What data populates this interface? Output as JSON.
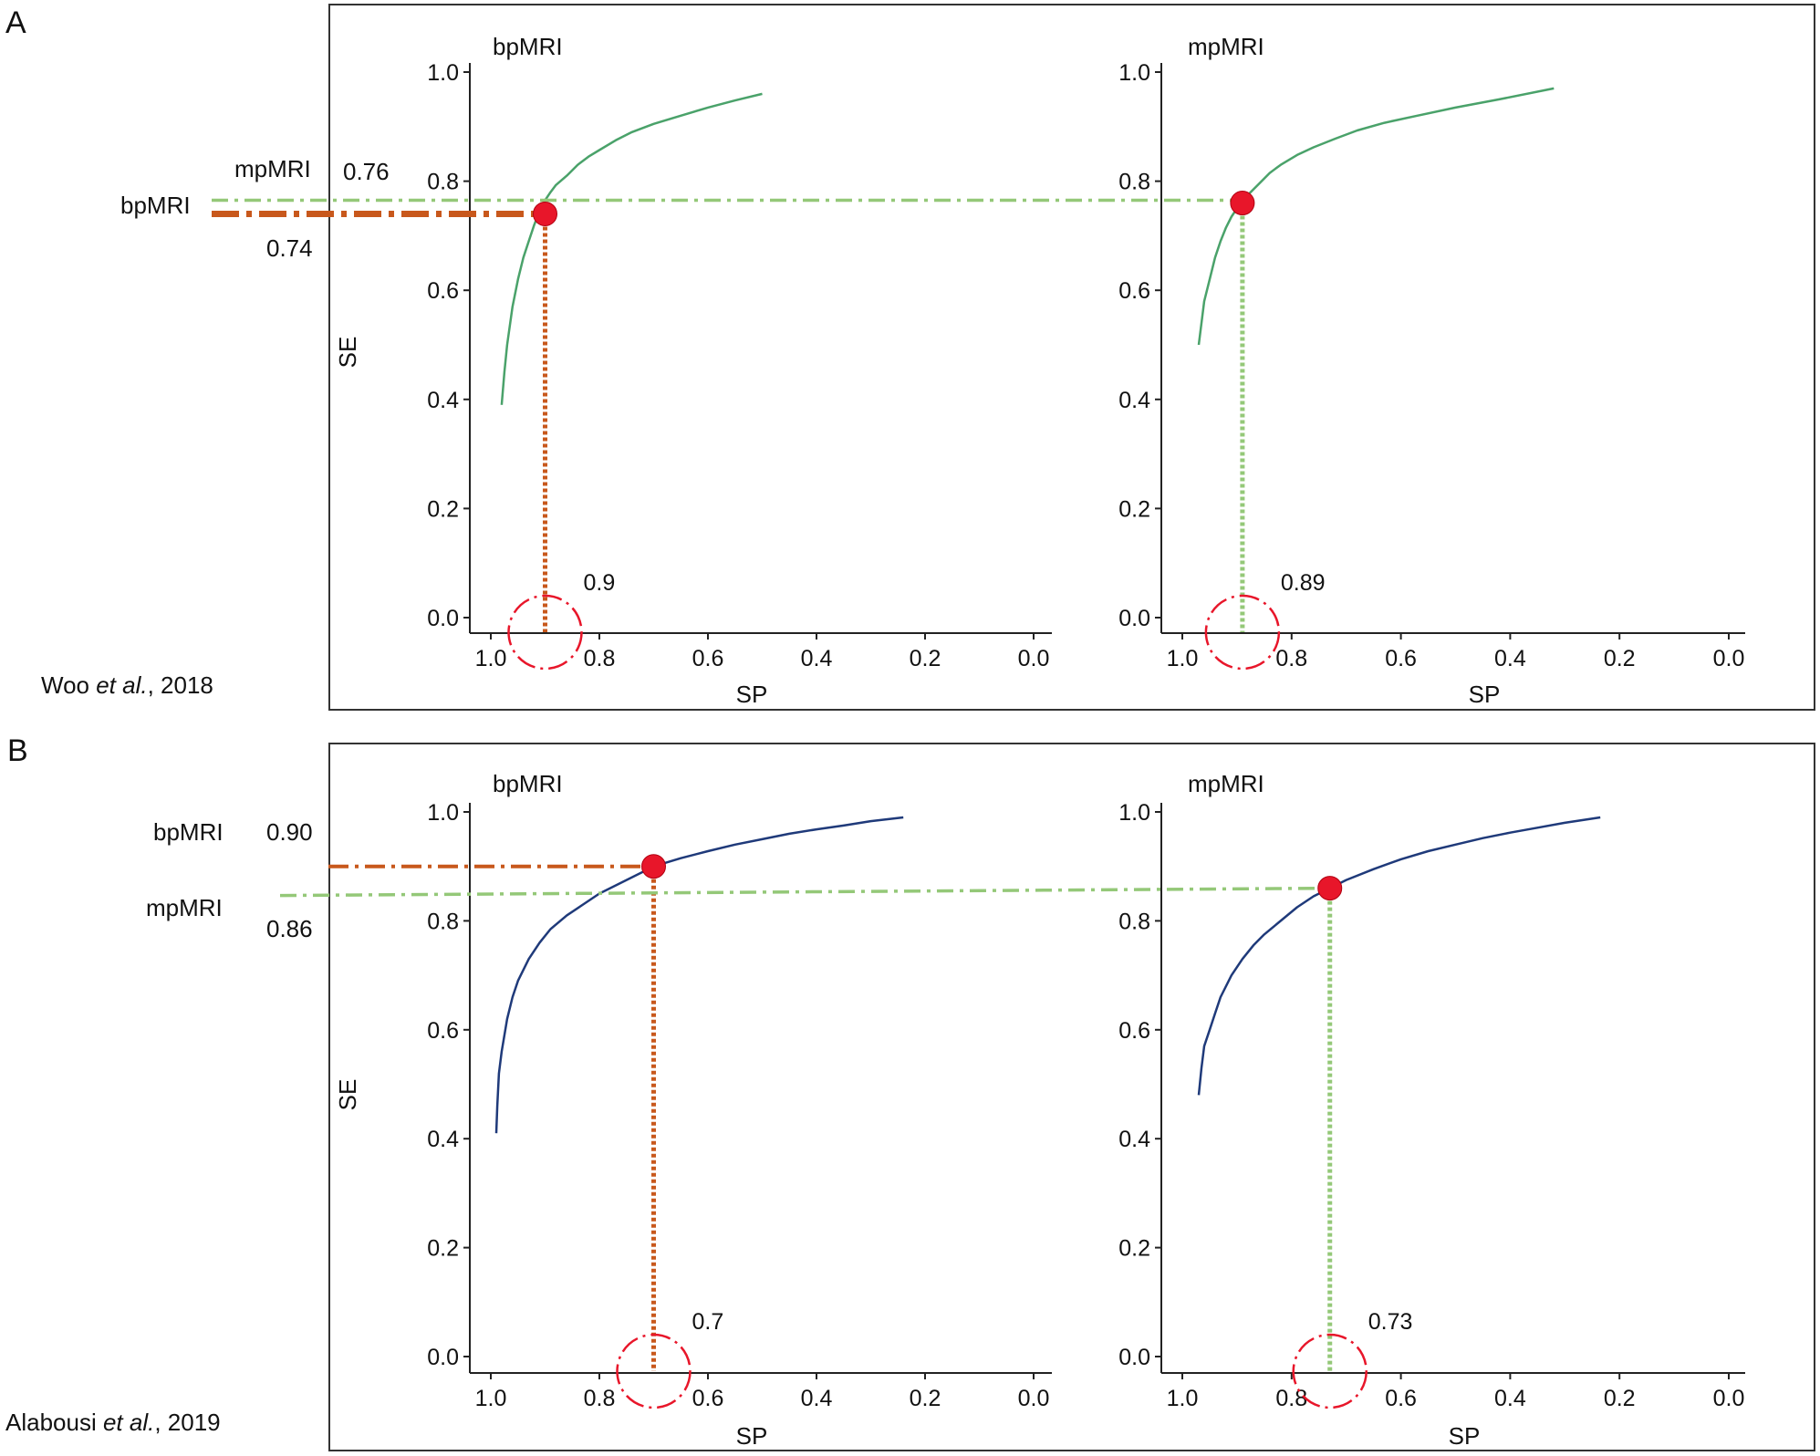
{
  "colors": {
    "bp": "#c8581c",
    "mp": "#94c878",
    "curve_a": "#4aa26a",
    "curve_b": "#1f3a7a",
    "point": "#e8162a",
    "circle": "#e8162a"
  },
  "chart_data": [
    {
      "panel": "A",
      "citation": {
        "author": "Woo ",
        "etal": "et al.",
        "year": ", 2018"
      },
      "side_labels": {
        "bp_label": "bpMRI",
        "bp_value": "0.74",
        "mp_label": "mpMRI",
        "mp_value": "0.76"
      },
      "ylabel": "SE",
      "plots": [
        {
          "type": "line",
          "title": "bpMRI",
          "xlabel": "SP",
          "xlim": [
            1.0,
            0.0
          ],
          "ylim": [
            0.0,
            1.0
          ],
          "xticks": [
            "1.0",
            "0.8",
            "0.6",
            "0.4",
            "0.2",
            "0.0"
          ],
          "yticks": [
            "0.0",
            "0.2",
            "0.4",
            "0.6",
            "0.8",
            "1.0"
          ],
          "curve_color": "curve_a",
          "guide_color": "bp",
          "curve": {
            "sp": [
              0.98,
              0.975,
              0.97,
              0.96,
              0.95,
              0.94,
              0.93,
              0.92,
              0.91,
              0.9,
              0.89,
              0.88,
              0.86,
              0.84,
              0.82,
              0.8,
              0.77,
              0.74,
              0.7,
              0.65,
              0.6,
              0.55,
              0.5
            ],
            "se": [
              0.39,
              0.45,
              0.5,
              0.57,
              0.62,
              0.66,
              0.69,
              0.72,
              0.745,
              0.765,
              0.78,
              0.793,
              0.81,
              0.83,
              0.845,
              0.857,
              0.875,
              0.89,
              0.905,
              0.92,
              0.935,
              0.948,
              0.96
            ]
          },
          "point": {
            "sp": 0.9,
            "se": 0.74
          },
          "sp_annotation": "0.9"
        },
        {
          "type": "line",
          "title": "mpMRI",
          "xlabel": "SP",
          "xlim": [
            1.0,
            0.0
          ],
          "ylim": [
            0.0,
            1.0
          ],
          "xticks": [
            "1.0",
            "0.8",
            "0.6",
            "0.4",
            "0.2",
            "0.0"
          ],
          "yticks": [
            "0.0",
            "0.2",
            "0.4",
            "0.6",
            "0.8",
            "1.0"
          ],
          "curve_color": "curve_a",
          "guide_color": "mp",
          "curve": {
            "sp": [
              0.97,
              0.965,
              0.96,
              0.95,
              0.94,
              0.93,
              0.92,
              0.91,
              0.9,
              0.89,
              0.88,
              0.86,
              0.84,
              0.82,
              0.79,
              0.76,
              0.72,
              0.68,
              0.63,
              0.57,
              0.5,
              0.42,
              0.32
            ],
            "se": [
              0.5,
              0.54,
              0.58,
              0.62,
              0.66,
              0.69,
              0.715,
              0.735,
              0.75,
              0.762,
              0.775,
              0.795,
              0.815,
              0.83,
              0.848,
              0.862,
              0.878,
              0.893,
              0.907,
              0.92,
              0.935,
              0.95,
              0.97
            ]
          },
          "point": {
            "sp": 0.89,
            "se": 0.76
          },
          "sp_annotation": "0.89"
        }
      ]
    },
    {
      "panel": "B",
      "citation": {
        "author": "Alabousi ",
        "etal": "et al.",
        "year": ", 2019"
      },
      "side_labels": {
        "bp_label": "bpMRI",
        "bp_value": "0.90",
        "mp_label": "mpMRI",
        "mp_value": "0.86"
      },
      "ylabel": "SE",
      "plots": [
        {
          "type": "line",
          "title": "bpMRI",
          "xlabel": "SP",
          "xlim": [
            1.0,
            0.0
          ],
          "ylim": [
            0.0,
            1.0
          ],
          "xticks": [
            "1.0",
            "0.8",
            "0.6",
            "0.4",
            "0.2",
            "0.0"
          ],
          "yticks": [
            "0.0",
            "0.2",
            "0.4",
            "0.6",
            "0.8",
            "1.0"
          ],
          "curve_color": "curve_b",
          "guide_color": "bp",
          "curve": {
            "sp": [
              0.99,
              0.988,
              0.985,
              0.98,
              0.97,
              0.96,
              0.95,
              0.93,
              0.91,
              0.89,
              0.86,
              0.83,
              0.8,
              0.76,
              0.72,
              0.7,
              0.65,
              0.6,
              0.55,
              0.5,
              0.45,
              0.4,
              0.35,
              0.3,
              0.24
            ],
            "se": [
              0.41,
              0.46,
              0.52,
              0.56,
              0.62,
              0.66,
              0.69,
              0.73,
              0.76,
              0.785,
              0.81,
              0.83,
              0.85,
              0.87,
              0.89,
              0.9,
              0.915,
              0.928,
              0.94,
              0.95,
              0.96,
              0.968,
              0.975,
              0.983,
              0.99
            ]
          },
          "point": {
            "sp": 0.7,
            "se": 0.9
          },
          "sp_annotation": "0.7"
        },
        {
          "type": "line",
          "title": "mpMRI",
          "xlabel": "SP",
          "xlim": [
            1.0,
            0.0
          ],
          "ylim": [
            0.0,
            1.0
          ],
          "xticks": [
            "1.0",
            "0.8",
            "0.6",
            "0.4",
            "0.2",
            "0.0"
          ],
          "yticks": [
            "0.0",
            "0.2",
            "0.4",
            "0.6",
            "0.8",
            "1.0"
          ],
          "curve_color": "curve_b",
          "guide_color": "mp",
          "curve": {
            "sp": [
              0.97,
              0.965,
              0.96,
              0.95,
              0.94,
              0.93,
              0.91,
              0.89,
              0.87,
              0.85,
              0.82,
              0.79,
              0.76,
              0.73,
              0.7,
              0.65,
              0.6,
              0.55,
              0.5,
              0.45,
              0.4,
              0.35,
              0.3,
              0.235
            ],
            "se": [
              0.48,
              0.53,
              0.57,
              0.6,
              0.63,
              0.66,
              0.7,
              0.73,
              0.755,
              0.775,
              0.8,
              0.825,
              0.845,
              0.86,
              0.875,
              0.895,
              0.913,
              0.928,
              0.94,
              0.952,
              0.962,
              0.971,
              0.98,
              0.99
            ]
          },
          "point": {
            "sp": 0.73,
            "se": 0.86
          },
          "sp_annotation": "0.73"
        }
      ]
    }
  ]
}
